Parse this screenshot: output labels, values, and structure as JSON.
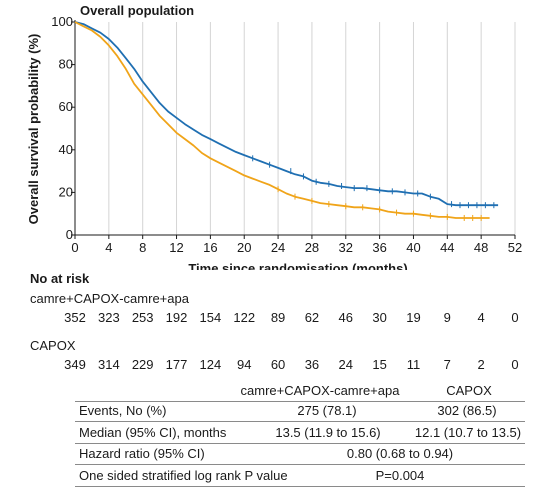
{
  "chart_data": {
    "type": "line",
    "title": "Overall population",
    "xlabel": "Time since randomisation (months)",
    "ylabel": "Overall survival probability (%)",
    "xlim": [
      0,
      52
    ],
    "ylim": [
      0,
      100
    ],
    "xticks": [
      0,
      4,
      8,
      12,
      16,
      20,
      24,
      28,
      32,
      36,
      40,
      44,
      48,
      52
    ],
    "yticks": [
      0,
      20,
      40,
      60,
      80,
      100
    ],
    "grid": "vertical",
    "legend": "none",
    "series": [
      {
        "name": "camre+CAPOX-camre+apa",
        "color": "#1f6fb2",
        "x": [
          0,
          1,
          2,
          3,
          4,
          5,
          6,
          7,
          8,
          9,
          10,
          11,
          12,
          13,
          14,
          15,
          16,
          17,
          18,
          19,
          20,
          21,
          22,
          23,
          24,
          25,
          26,
          27,
          28,
          29,
          30,
          31,
          32,
          33,
          34,
          35,
          36,
          37,
          38,
          39,
          40,
          41,
          42,
          43,
          44,
          45,
          46,
          47,
          48,
          49,
          50
        ],
        "y": [
          100,
          99,
          97,
          95,
          92,
          88,
          83,
          78,
          72,
          67,
          62,
          58,
          55,
          52,
          49.5,
          47,
          45,
          43,
          41,
          39,
          37.5,
          36,
          34.5,
          33,
          31.5,
          30,
          28.5,
          27.5,
          25.5,
          24.5,
          24,
          23,
          22.5,
          22,
          22,
          21.5,
          21,
          20.5,
          20.5,
          20,
          19.5,
          19.5,
          18,
          17,
          14.5,
          14,
          14,
          14,
          14,
          14,
          14
        ],
        "censor_marks": [
          [
            21,
            36
          ],
          [
            23,
            33
          ],
          [
            25.5,
            30
          ],
          [
            27,
            27.5
          ],
          [
            28.5,
            25
          ],
          [
            30,
            24
          ],
          [
            31.5,
            23
          ],
          [
            33,
            22
          ],
          [
            34.5,
            22
          ],
          [
            36,
            21
          ],
          [
            37.5,
            20.5
          ],
          [
            39,
            20
          ],
          [
            40.5,
            19.5
          ],
          [
            42,
            18
          ],
          [
            44.5,
            14.5
          ],
          [
            45.5,
            14
          ],
          [
            46.5,
            14
          ],
          [
            47.5,
            14
          ],
          [
            48.5,
            14
          ],
          [
            49.5,
            14
          ]
        ]
      },
      {
        "name": "CAPOX",
        "color": "#f0a419",
        "x": [
          0,
          1,
          2,
          3,
          4,
          5,
          6,
          7,
          8,
          9,
          10,
          11,
          12,
          13,
          14,
          15,
          16,
          17,
          18,
          19,
          20,
          21,
          22,
          23,
          24,
          25,
          26,
          27,
          28,
          29,
          30,
          31,
          32,
          33,
          34,
          35,
          36,
          37,
          38,
          39,
          40,
          41,
          42,
          43,
          44,
          45,
          46,
          47,
          48,
          49
        ],
        "y": [
          100,
          98,
          96,
          93,
          89,
          84,
          78,
          71,
          66,
          61,
          56,
          52,
          48,
          45,
          42,
          38.5,
          36,
          34,
          32,
          30,
          28,
          26.5,
          25,
          23.5,
          21.5,
          19.5,
          18,
          17,
          16,
          15,
          14.5,
          14,
          13.5,
          13,
          13,
          12.5,
          12,
          11,
          10.5,
          10,
          10,
          9.5,
          9,
          8.5,
          8.5,
          8,
          8,
          8,
          8,
          8
        ],
        "censor_marks": [
          [
            24,
            21.5
          ],
          [
            26,
            18
          ],
          [
            28,
            16
          ],
          [
            30,
            14.5
          ],
          [
            32,
            13.5
          ],
          [
            34,
            13
          ],
          [
            36,
            12
          ],
          [
            38,
            10.5
          ],
          [
            40,
            10
          ],
          [
            42,
            9
          ],
          [
            44,
            8.5
          ],
          [
            46,
            8
          ],
          [
            47,
            8
          ],
          [
            48,
            8
          ]
        ]
      }
    ]
  },
  "risk_table": {
    "heading": "No at risk",
    "times": [
      0,
      4,
      8,
      12,
      16,
      20,
      24,
      28,
      32,
      36,
      40,
      44,
      48,
      52
    ],
    "groups": [
      {
        "label": "camre+CAPOX-camre+apa",
        "counts": [
          "352",
          "323",
          "253",
          "192",
          "154",
          "122",
          "89",
          "62",
          "46",
          "30",
          "19",
          "9",
          "4",
          "0"
        ]
      },
      {
        "label": "CAPOX",
        "counts": [
          "349",
          "314",
          "229",
          "177",
          "124",
          "94",
          "60",
          "36",
          "24",
          "15",
          "11",
          "7",
          "2",
          "0"
        ]
      }
    ]
  },
  "stats_table": {
    "col1_header": "camre+CAPOX-camre+apa",
    "col2_header": "CAPOX",
    "events_label": "Events, No (%)",
    "events_col1": "275 (78.1)",
    "events_col2": "302 (86.5)",
    "median_label": "Median (95% CI), months",
    "median_col1": "13.5 (11.9 to 15.6)",
    "median_col2": "12.1 (10.7 to 13.5)",
    "hr_label": "Hazard ratio (95% CI)",
    "hr_value": "0.80 (0.68 to 0.94)",
    "p_label": "One sided stratified log rank P value",
    "p_value": "P=0.004"
  }
}
